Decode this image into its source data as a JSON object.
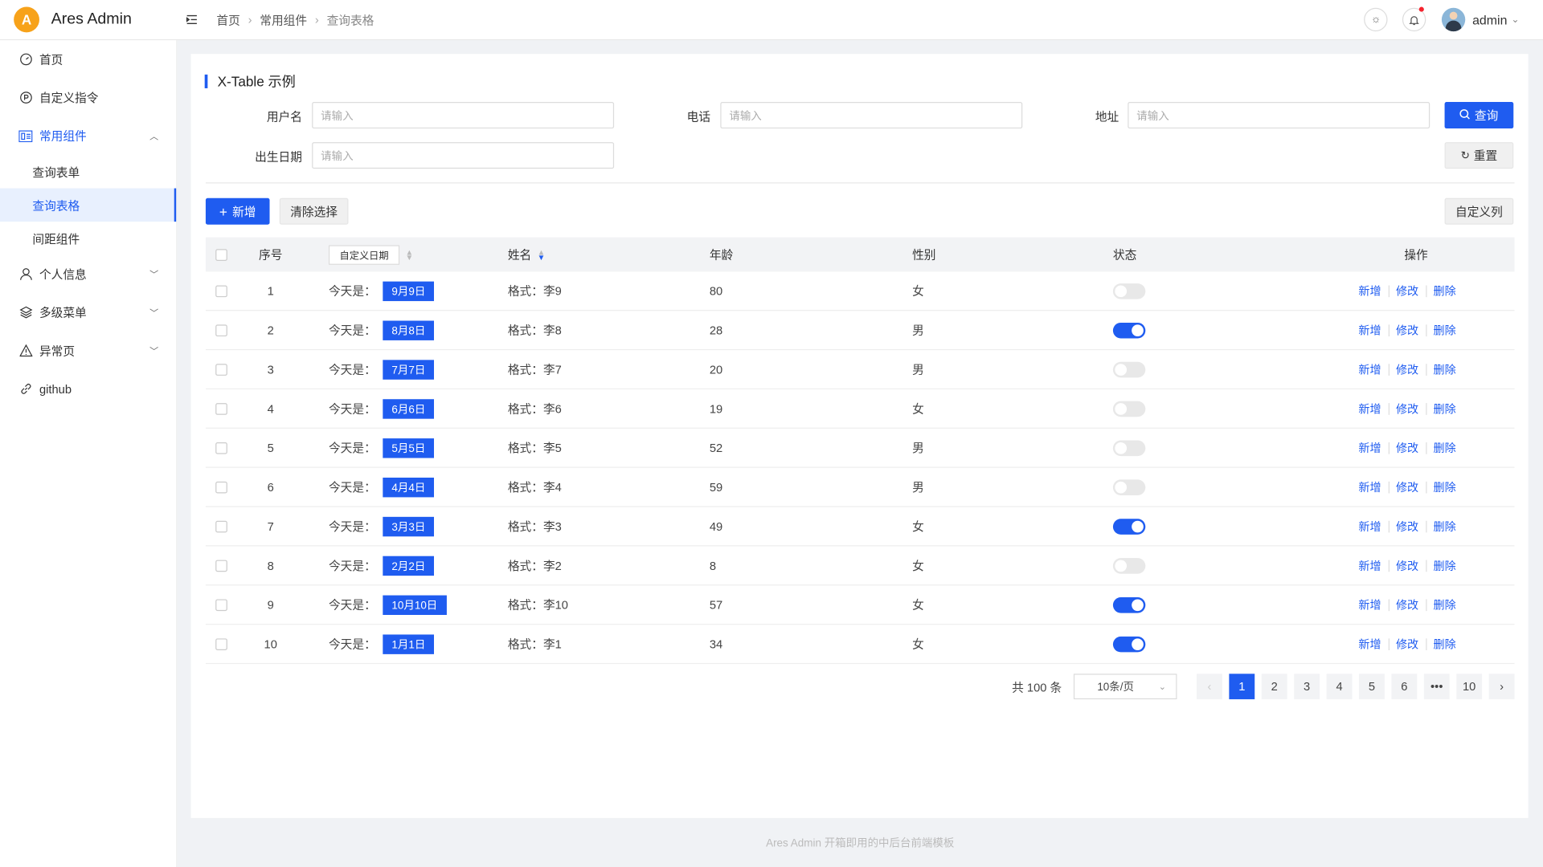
{
  "app": {
    "title": "Ares Admin",
    "logo_letter": "A"
  },
  "breadcrumb": [
    "首页",
    "常用组件",
    "查询表格"
  ],
  "header": {
    "user": "admin",
    "theme_icon": "sun-icon",
    "bell_icon": "bell-icon"
  },
  "sidebar": {
    "items": [
      {
        "label": "首页",
        "icon": "dashboard-icon"
      },
      {
        "label": "自定义指令",
        "icon": "directive-icon"
      },
      {
        "label": "常用组件",
        "icon": "components-icon",
        "children": [
          "查询表单",
          "查询表格",
          "间距组件"
        ],
        "selected": "查询表格"
      },
      {
        "label": "个人信息",
        "icon": "user-icon"
      },
      {
        "label": "多级菜单",
        "icon": "layers-icon"
      },
      {
        "label": "异常页",
        "icon": "warning-icon"
      },
      {
        "label": "github",
        "icon": "link-icon"
      }
    ]
  },
  "card": {
    "title": "X-Table 示例"
  },
  "search": {
    "username_label": "用户名",
    "phone_label": "电话",
    "address_label": "地址",
    "birth_label": "出生日期",
    "placeholder": "请输入",
    "query_label": "查询",
    "reset_label": "重置"
  },
  "toolbar": {
    "add_label": "新增",
    "clear_label": "清除选择",
    "custom_cols_label": "自定义列"
  },
  "table": {
    "headers": {
      "index": "序号",
      "date": "自定义日期",
      "name": "姓名",
      "age": "年龄",
      "sex": "性别",
      "status": "状态",
      "op": "操作"
    },
    "date_prefix": "今天是：",
    "name_prefix": "格式：",
    "op_labels": [
      "新增",
      "修改",
      "删除"
    ],
    "rows": [
      {
        "idx": "1",
        "date": "9月9日",
        "name": "李9",
        "age": "80",
        "sex": "女",
        "on": false
      },
      {
        "idx": "2",
        "date": "8月8日",
        "name": "李8",
        "age": "28",
        "sex": "男",
        "on": true
      },
      {
        "idx": "3",
        "date": "7月7日",
        "name": "李7",
        "age": "20",
        "sex": "男",
        "on": false
      },
      {
        "idx": "4",
        "date": "6月6日",
        "name": "李6",
        "age": "19",
        "sex": "女",
        "on": false
      },
      {
        "idx": "5",
        "date": "5月5日",
        "name": "李5",
        "age": "52",
        "sex": "男",
        "on": false
      },
      {
        "idx": "6",
        "date": "4月4日",
        "name": "李4",
        "age": "59",
        "sex": "男",
        "on": false
      },
      {
        "idx": "7",
        "date": "3月3日",
        "name": "李3",
        "age": "49",
        "sex": "女",
        "on": true
      },
      {
        "idx": "8",
        "date": "2月2日",
        "name": "李2",
        "age": "8",
        "sex": "女",
        "on": false
      },
      {
        "idx": "9",
        "date": "10月10日",
        "name": "李10",
        "age": "57",
        "sex": "女",
        "on": true
      },
      {
        "idx": "10",
        "date": "1月1日",
        "name": "李1",
        "age": "34",
        "sex": "女",
        "on": true
      }
    ]
  },
  "pagination": {
    "total": "共 100 条",
    "page_size": "10条/页",
    "pages": [
      "1",
      "2",
      "3",
      "4",
      "5",
      "6",
      "•••",
      "10"
    ],
    "current": "1"
  },
  "footer": "Ares Admin 开箱即用的中后台前端模板",
  "colors": {
    "primary": "#1f5cf0",
    "danger": "#f5222d"
  }
}
